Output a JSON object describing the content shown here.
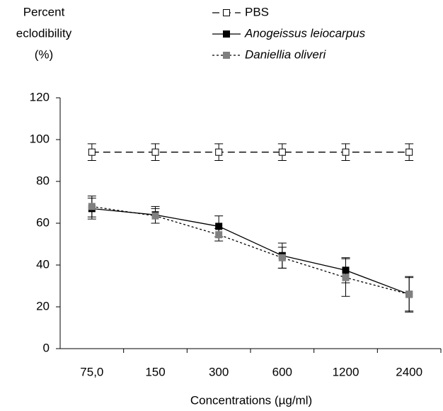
{
  "chart_data": {
    "type": "line",
    "y_label": [
      "Percent",
      "eclodibility",
      "(%)"
    ],
    "x_label": "Concentrations (µg/ml)",
    "categories": [
      "75,0",
      "150",
      "300",
      "600",
      "1200",
      "2400"
    ],
    "ylim": [
      0,
      120
    ],
    "yticks": [
      0,
      20,
      40,
      60,
      80,
      100,
      120
    ],
    "series": [
      {
        "name": "PBS",
        "color": "#ffffff",
        "line_style": "dashed",
        "italic": false,
        "values": [
          94,
          94,
          94,
          94,
          94,
          94
        ],
        "errors": [
          4,
          4,
          4,
          4,
          4,
          4
        ]
      },
      {
        "name": "Anogeissus leiocarpus",
        "color": "#000000",
        "line_style": "solid",
        "italic": true,
        "values": [
          67,
          64,
          58.5,
          44.5,
          37.5,
          26
        ],
        "errors": [
          5,
          4,
          5,
          6,
          6,
          8
        ]
      },
      {
        "name": "Daniellia oliveri",
        "color": "#808080",
        "line_style": "dotted",
        "italic": true,
        "values": [
          68,
          63.5,
          54.5,
          43.5,
          34,
          26
        ],
        "errors": [
          5,
          3.5,
          3,
          5,
          9,
          8.5
        ]
      }
    ]
  }
}
